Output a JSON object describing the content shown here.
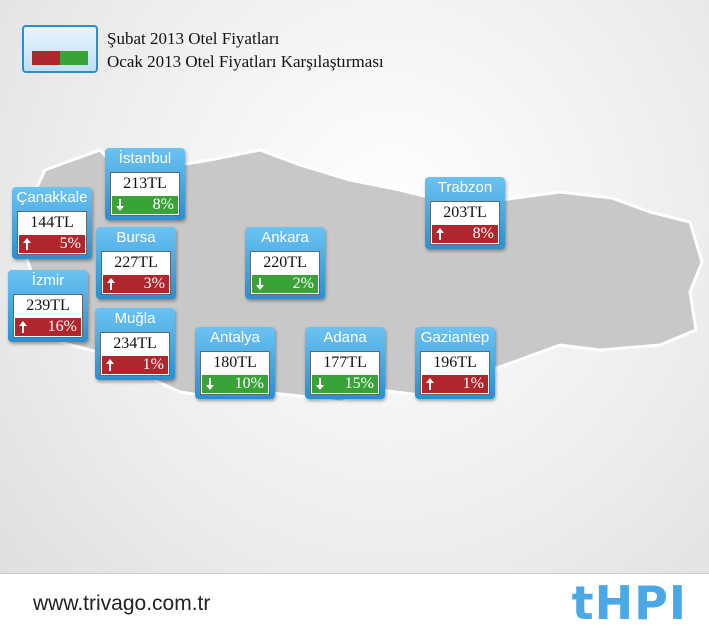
{
  "legend": {
    "line1": "Şubat 2013 Otel Fiyatları",
    "line2": "Ocak 2013 Otel Fiyatları Karşılaştırması"
  },
  "cities": [
    {
      "name": "İstanbul",
      "price": "213TL",
      "change": "8%",
      "trend": "down"
    },
    {
      "name": "Çanakkale",
      "price": "144TL",
      "change": "5%",
      "trend": "up"
    },
    {
      "name": "Bursa",
      "price": "227TL",
      "change": "3%",
      "trend": "up"
    },
    {
      "name": "İzmir",
      "price": "239TL",
      "change": "16%",
      "trend": "up"
    },
    {
      "name": "Muğla",
      "price": "234TL",
      "change": "1%",
      "trend": "up"
    },
    {
      "name": "Ankara",
      "price": "220TL",
      "change": "2%",
      "trend": "down"
    },
    {
      "name": "Antalya",
      "price": "180TL",
      "change": "10%",
      "trend": "down"
    },
    {
      "name": "Adana",
      "price": "177TL",
      "change": "15%",
      "trend": "down"
    },
    {
      "name": "Gaziantep",
      "price": "196TL",
      "change": "1%",
      "trend": "up"
    },
    {
      "name": "Trabzon",
      "price": "203TL",
      "change": "8%",
      "trend": "up"
    }
  ],
  "footer": {
    "url": "www.trivago.com.tr",
    "logo": "tHPI"
  }
}
